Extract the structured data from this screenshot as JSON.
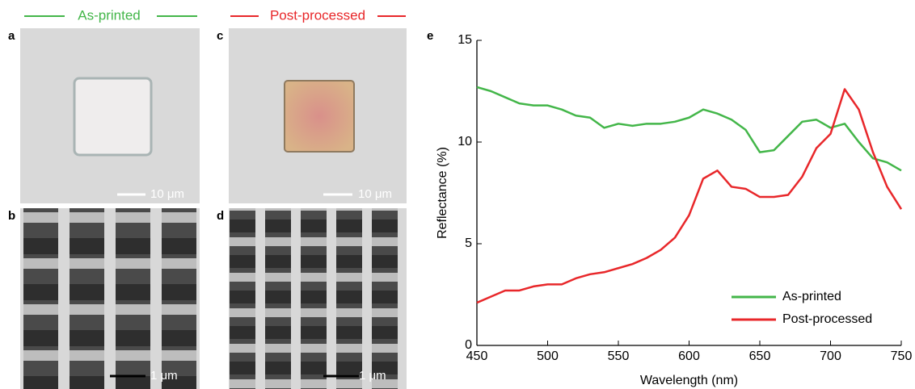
{
  "headers": [
    "As-printed",
    "Post-processed"
  ],
  "panel_labels": [
    "a",
    "b",
    "c",
    "d",
    "e"
  ],
  "scale_bars": [
    "10 μm",
    "1 μm",
    "10 μm",
    "1 μm"
  ],
  "chart_data": {
    "type": "line",
    "x_label": "Wavelength (nm)",
    "y_label": "Reflectance (%)",
    "x": [
      450,
      460,
      470,
      480,
      490,
      500,
      510,
      520,
      530,
      540,
      550,
      560,
      570,
      580,
      590,
      600,
      610,
      620,
      630,
      640,
      650,
      660,
      670,
      680,
      690,
      700,
      710,
      720,
      730,
      740,
      750
    ],
    "series": [
      {
        "name": "As-printed",
        "color": "#43b649",
        "values": [
          12.7,
          12.5,
          12.2,
          11.9,
          11.8,
          11.8,
          11.6,
          11.3,
          11.2,
          10.7,
          10.9,
          10.8,
          10.9,
          10.9,
          11.0,
          11.2,
          11.6,
          11.4,
          11.1,
          10.6,
          9.5,
          9.6,
          10.3,
          11.0,
          11.1,
          10.7,
          10.9,
          10.0,
          9.2,
          9.0,
          8.6
        ]
      },
      {
        "name": "Post-processed",
        "color": "#e8272a",
        "values": [
          2.1,
          2.4,
          2.7,
          2.7,
          2.9,
          3.0,
          3.0,
          3.3,
          3.5,
          3.6,
          3.8,
          4.0,
          4.3,
          4.7,
          5.3,
          6.4,
          8.2,
          8.6,
          7.8,
          7.7,
          7.3,
          7.3,
          7.4,
          8.3,
          9.7,
          10.4,
          12.6,
          11.6,
          9.5,
          7.8,
          6.7
        ]
      }
    ],
    "xlim": [
      450,
      750
    ],
    "ylim": [
      0,
      15
    ],
    "xticks": [
      450,
      500,
      550,
      600,
      650,
      700,
      750
    ],
    "yticks": [
      0,
      5,
      10,
      15
    ],
    "legend": "lower right"
  }
}
